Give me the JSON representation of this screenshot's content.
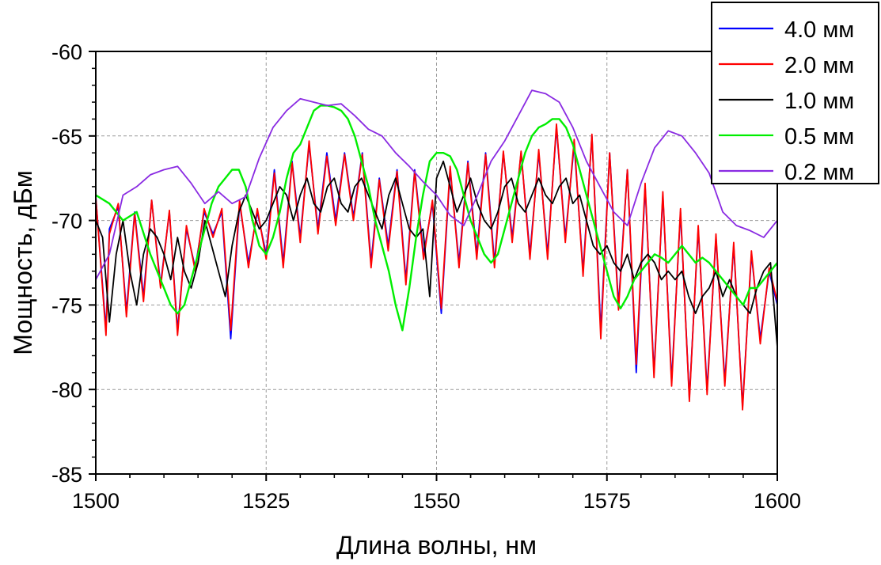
{
  "chart_data": {
    "type": "line",
    "title": "",
    "xlabel": "Длина волны, нм",
    "ylabel": "Мощность, дБм",
    "xlim": [
      1500,
      1600
    ],
    "ylim": [
      -85,
      -60
    ],
    "xticks": [
      1500,
      1525,
      1550,
      1575,
      1600
    ],
    "yticks": [
      -60,
      -65,
      -70,
      -75,
      -80,
      -85
    ],
    "xtick_labels": [
      "1500",
      "1525",
      "1550",
      "1575",
      "1600"
    ],
    "ytick_labels": [
      "-60",
      "-65",
      "-70",
      "-75",
      "-80",
      "-85"
    ],
    "grid": true,
    "legend_position": "top-right",
    "series": [
      {
        "name": "4.0 мм",
        "color": "#0000ff",
        "x": [
          1500,
          1501.5,
          1502,
          1503.3,
          1504.5,
          1505.7,
          1507,
          1508.2,
          1509.5,
          1510.8,
          1512,
          1513.3,
          1514.6,
          1515.9,
          1517.2,
          1518.5,
          1519.8,
          1521.1,
          1522.4,
          1523.7,
          1525,
          1526.2,
          1527.5,
          1528.8,
          1530,
          1531.3,
          1532.6,
          1533.9,
          1535.2,
          1536.5,
          1537.8,
          1539.1,
          1540.4,
          1541.6,
          1542.9,
          1544.2,
          1545.5,
          1546.8,
          1548.1,
          1549.4,
          1550.7,
          1552,
          1553.3,
          1554.6,
          1555.9,
          1557.2,
          1558.5,
          1559.8,
          1561.1,
          1562.4,
          1563.7,
          1565,
          1566.3,
          1567.6,
          1568.9,
          1570.2,
          1571.5,
          1572.8,
          1574.1,
          1575.4,
          1576.7,
          1578,
          1579.3,
          1580.6,
          1581.9,
          1583.2,
          1584.5,
          1585.8,
          1587.1,
          1588.4,
          1589.7,
          1591,
          1592.3,
          1593.6,
          1594.9,
          1596.2,
          1597.5,
          1598.8,
          1600
        ],
        "y": [
          -68.6,
          -76.5,
          -70.5,
          -69.2,
          -75.4,
          -69.5,
          -74.5,
          -68.8,
          -73.8,
          -69.5,
          -76.5,
          -70.5,
          -72.8,
          -69.5,
          -70.8,
          -69.5,
          -77,
          -69,
          -72.5,
          -69.5,
          -72,
          -67,
          -72.5,
          -66.5,
          -71,
          -65.5,
          -70.5,
          -66,
          -70,
          -66,
          -69.8,
          -66,
          -72.5,
          -67.5,
          -71.5,
          -67,
          -73.5,
          -67,
          -72,
          -69,
          -75.5,
          -67,
          -72.5,
          -66.5,
          -72,
          -66,
          -72.5,
          -66,
          -71,
          -66,
          -72,
          -66,
          -72,
          -64.5,
          -71,
          -65.5,
          -73,
          -65,
          -76.5,
          -66,
          -75,
          -67,
          -79,
          -68,
          -79,
          -68.5,
          -79.5,
          -69.5,
          -80.5,
          -70.5,
          -80,
          -71,
          -79.5,
          -71.5,
          -81,
          -72,
          -77,
          -73,
          -75
        ]
      },
      {
        "name": "2.0 мм",
        "color": "#ff0000",
        "x": [
          1500,
          1501.5,
          1502,
          1503.3,
          1504.5,
          1505.7,
          1507,
          1508.2,
          1509.5,
          1510.8,
          1512,
          1513.3,
          1514.6,
          1515.9,
          1517.2,
          1518.5,
          1519.8,
          1521.1,
          1522.4,
          1523.7,
          1525,
          1526.2,
          1527.5,
          1528.8,
          1530,
          1531.3,
          1532.6,
          1533.9,
          1535.2,
          1536.5,
          1537.8,
          1539.1,
          1540.4,
          1541.6,
          1542.9,
          1544.2,
          1545.5,
          1546.8,
          1548.1,
          1549.4,
          1550.7,
          1552,
          1553.3,
          1554.6,
          1555.9,
          1557.2,
          1558.5,
          1559.8,
          1561.1,
          1562.4,
          1563.7,
          1565,
          1566.3,
          1567.6,
          1568.9,
          1570.2,
          1571.5,
          1572.8,
          1574.1,
          1575.4,
          1576.7,
          1578,
          1579.3,
          1580.6,
          1581.9,
          1583.2,
          1584.5,
          1585.8,
          1587.1,
          1588.4,
          1589.7,
          1591,
          1592.3,
          1593.6,
          1594.9,
          1596.2,
          1597.5,
          1598.8,
          1600
        ],
        "y": [
          -68.6,
          -76.8,
          -70.8,
          -69,
          -75.7,
          -69.6,
          -74.8,
          -68.8,
          -74,
          -69.4,
          -76.8,
          -70.3,
          -73,
          -69.3,
          -71,
          -69.3,
          -76.5,
          -68.8,
          -72.8,
          -69.3,
          -72.3,
          -67.2,
          -72.8,
          -66.6,
          -71.3,
          -65.3,
          -70.8,
          -66.2,
          -70.3,
          -66.1,
          -70,
          -66.1,
          -72.8,
          -67.6,
          -71.8,
          -67.1,
          -73.8,
          -67.1,
          -72.3,
          -68.8,
          -75.2,
          -66.8,
          -72.8,
          -66.6,
          -72.3,
          -66.1,
          -72.8,
          -65.9,
          -71.3,
          -65.9,
          -72.3,
          -65.8,
          -72.3,
          -64.3,
          -71.3,
          -65.2,
          -73.3,
          -64.9,
          -77,
          -66,
          -75.3,
          -67,
          -78.5,
          -67.8,
          -79.3,
          -68.3,
          -79.8,
          -69.3,
          -80.7,
          -70.3,
          -80.3,
          -70.8,
          -79.8,
          -71.3,
          -81.2,
          -71.8,
          -77.3,
          -72.8,
          -74.8
        ]
      },
      {
        "name": "1.0 мм",
        "color": "#000000",
        "x": [
          1500,
          1501,
          1502,
          1503,
          1504,
          1505,
          1506,
          1507,
          1508,
          1509,
          1510,
          1511,
          1512,
          1513,
          1514,
          1515,
          1516,
          1517,
          1518,
          1519,
          1520,
          1521,
          1522,
          1523,
          1524,
          1525,
          1526,
          1527,
          1528,
          1529,
          1530,
          1531,
          1532,
          1533,
          1534,
          1535,
          1536,
          1537,
          1538,
          1539,
          1540,
          1541,
          1542,
          1543,
          1544,
          1545,
          1546,
          1547,
          1548,
          1549,
          1550,
          1551,
          1552,
          1553,
          1554,
          1555,
          1556,
          1557,
          1558,
          1559,
          1560,
          1561,
          1562,
          1563,
          1564,
          1565,
          1566,
          1567,
          1568,
          1569,
          1570,
          1571,
          1572,
          1573,
          1574,
          1575,
          1576,
          1577,
          1578,
          1579,
          1580,
          1581,
          1582,
          1583,
          1584,
          1585,
          1586,
          1587,
          1588,
          1589,
          1590,
          1591,
          1592,
          1593,
          1594,
          1595,
          1596,
          1597,
          1598,
          1599,
          1600
        ],
        "y": [
          -70,
          -71,
          -76,
          -72,
          -70,
          -73,
          -75,
          -72,
          -70.5,
          -71,
          -72,
          -73.5,
          -71,
          -73,
          -74,
          -72.5,
          -70,
          -71.5,
          -73,
          -74.5,
          -71.5,
          -69.5,
          -68.5,
          -69.5,
          -70.5,
          -70,
          -69,
          -68,
          -68.5,
          -70,
          -68.5,
          -67.5,
          -69,
          -69.5,
          -68,
          -67.5,
          -69,
          -69.5,
          -68,
          -67.5,
          -68.5,
          -69.5,
          -70.5,
          -68.5,
          -67.5,
          -69,
          -70.5,
          -71,
          -70.5,
          -74.5,
          -67.5,
          -66.5,
          -68,
          -69.5,
          -68.5,
          -67.5,
          -69,
          -70,
          -70.5,
          -69.5,
          -68,
          -67.5,
          -69,
          -69.5,
          -68.5,
          -67.5,
          -68.5,
          -69,
          -68,
          -67.5,
          -69,
          -68.5,
          -70,
          -71.5,
          -72,
          -71.5,
          -72.5,
          -73,
          -72,
          -73.5,
          -72.5,
          -72,
          -72.5,
          -73.5,
          -73,
          -73.5,
          -73,
          -74.5,
          -75.5,
          -74.5,
          -74,
          -73,
          -74.5,
          -73.5,
          -74.5,
          -75,
          -75.5,
          -74,
          -73,
          -72.5,
          -77.5
        ]
      },
      {
        "name": "0.5 мм",
        "color": "#00ee00",
        "x": [
          1500,
          1502,
          1504,
          1506,
          1508,
          1510,
          1511,
          1512,
          1513,
          1514,
          1515,
          1516,
          1517,
          1518,
          1519,
          1520,
          1521,
          1522,
          1523,
          1524,
          1525,
          1526,
          1527,
          1528,
          1529,
          1530,
          1531,
          1532,
          1533,
          1534,
          1535,
          1536,
          1537,
          1538,
          1539,
          1540,
          1541,
          1542,
          1543,
          1544,
          1545,
          1546,
          1547,
          1548,
          1549,
          1550,
          1551,
          1552,
          1553,
          1554,
          1555,
          1556,
          1557,
          1558,
          1559,
          1560,
          1561,
          1562,
          1563,
          1564,
          1565,
          1566,
          1567,
          1568,
          1569,
          1570,
          1571,
          1572,
          1573,
          1574,
          1575,
          1576,
          1577,
          1578,
          1579,
          1580,
          1581,
          1582,
          1583,
          1584,
          1585,
          1586,
          1587,
          1588,
          1589,
          1590,
          1591,
          1592,
          1593,
          1594,
          1595,
          1596,
          1597,
          1598,
          1599,
          1600
        ],
        "y": [
          -68.5,
          -69,
          -70,
          -69.5,
          -72,
          -74,
          -75,
          -75.5,
          -75,
          -73.5,
          -72,
          -70.5,
          -69,
          -68,
          -67.5,
          -67,
          -67,
          -68,
          -70,
          -71.5,
          -72,
          -71,
          -69.5,
          -67.5,
          -66,
          -65.5,
          -64.5,
          -63.5,
          -63.2,
          -63.2,
          -63.3,
          -63.5,
          -64,
          -65,
          -66.5,
          -68,
          -70,
          -71.5,
          -73,
          -75,
          -76.5,
          -74,
          -71,
          -68.5,
          -66.5,
          -66,
          -66,
          -66.2,
          -67,
          -68.5,
          -70,
          -71,
          -72,
          -72.5,
          -72,
          -70.5,
          -69,
          -67.5,
          -66,
          -65,
          -64.5,
          -64.3,
          -64,
          -64,
          -64.5,
          -65.5,
          -67,
          -68.5,
          -70,
          -71.5,
          -73,
          -74.5,
          -75.2,
          -74.5,
          -73.5,
          -73,
          -72.5,
          -72,
          -72.2,
          -72.5,
          -72,
          -71.5,
          -72,
          -72.5,
          -72.2,
          -72.5,
          -73,
          -73.5,
          -74,
          -74.5,
          -75,
          -74,
          -74,
          -73.5,
          -73,
          -72.5
        ]
      },
      {
        "name": "0.2 мм",
        "color": "#8a2be2",
        "x": [
          1500,
          1502,
          1504,
          1506,
          1508,
          1510,
          1512,
          1514,
          1516,
          1518,
          1520,
          1522,
          1524,
          1526,
          1528,
          1530,
          1532,
          1534,
          1536,
          1538,
          1540,
          1542,
          1544,
          1546,
          1548,
          1550,
          1552,
          1554,
          1556,
          1558,
          1560,
          1562,
          1564,
          1566,
          1568,
          1570,
          1572,
          1574,
          1576,
          1578,
          1580,
          1582,
          1584,
          1586,
          1588,
          1590,
          1592,
          1594,
          1596,
          1598,
          1600
        ],
        "y": [
          -73.5,
          -72,
          -68.5,
          -68,
          -67.3,
          -67,
          -66.8,
          -67.8,
          -69,
          -68.3,
          -69,
          -68.6,
          -66.3,
          -64.5,
          -63.5,
          -62.8,
          -63,
          -63.2,
          -63.1,
          -63.8,
          -64.6,
          -65,
          -66,
          -66.8,
          -67.7,
          -68.5,
          -69.7,
          -70.3,
          -68.5,
          -66.5,
          -65.3,
          -63.8,
          -62.3,
          -62.5,
          -63,
          -64.5,
          -66.5,
          -68,
          -69.5,
          -70.3,
          -67.8,
          -65.7,
          -64.7,
          -65,
          -66,
          -67.2,
          -69.5,
          -70.3,
          -70.6,
          -71,
          -70
        ]
      }
    ]
  }
}
